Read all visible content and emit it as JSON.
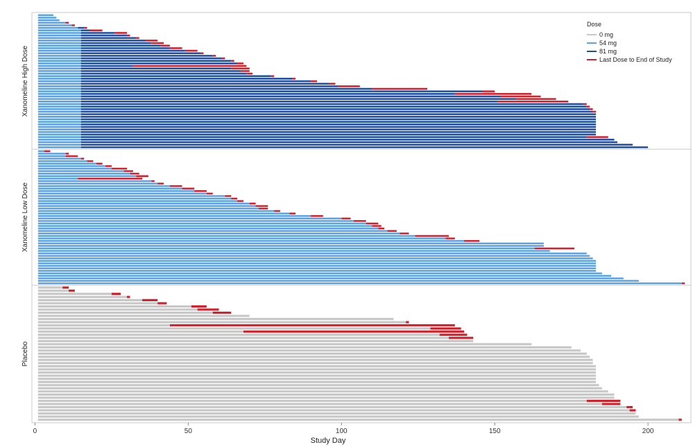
{
  "chart_data": {
    "type": "swimmer",
    "xlabel": "Study Day",
    "xlim": [
      -1,
      214
    ],
    "x_ticks": [
      0,
      50,
      100,
      150,
      200
    ],
    "legend": {
      "title": "Dose",
      "position": "top-right",
      "entries": [
        {
          "label": "0 mg",
          "color": "#c8c8c8"
        },
        {
          "label": "54 mg",
          "color": "#5aa2e6"
        },
        {
          "label": "81 mg",
          "color": "#1f4fa3"
        },
        {
          "label": "Last Dose to End of Study",
          "color": "#d4202a"
        }
      ]
    },
    "panels": [
      {
        "label": "Xanomeline High Dose",
        "subjects": [
          {
            "start": 1,
            "end": 6,
            "dose54_end": 6,
            "red_to": 6
          },
          {
            "start": 1,
            "end": 7,
            "dose54_end": 7,
            "red_to": 7
          },
          {
            "start": 1,
            "end": 8,
            "dose54_end": 8,
            "red_to": 8
          },
          {
            "start": 1,
            "end": 10,
            "dose54_end": 10,
            "red_to": 11
          },
          {
            "start": 1,
            "end": 12,
            "dose54_end": 12,
            "red_to": 13
          },
          {
            "start": 1,
            "end": 16,
            "dose54_end": 14,
            "red_to": 17
          },
          {
            "start": 1,
            "end": 18,
            "dose54_end": 15,
            "red_to": 22
          },
          {
            "start": 1,
            "end": 26,
            "dose54_end": 15,
            "red_to": 30
          },
          {
            "start": 1,
            "end": 30,
            "dose54_end": 15,
            "red_to": 31
          },
          {
            "start": 1,
            "end": 33,
            "dose54_end": 15,
            "red_to": 34
          },
          {
            "start": 1,
            "end": 36,
            "dose54_end": 15,
            "red_to": 40
          },
          {
            "start": 1,
            "end": 38,
            "dose54_end": 15,
            "red_to": 42
          },
          {
            "start": 1,
            "end": 41,
            "dose54_end": 15,
            "red_to": 44
          },
          {
            "start": 1,
            "end": 44,
            "dose54_end": 15,
            "red_to": 48
          },
          {
            "start": 1,
            "end": 49,
            "dose54_end": 15,
            "red_to": 53
          },
          {
            "start": 1,
            "end": 54,
            "dose54_end": 15,
            "red_to": 55
          },
          {
            "start": 1,
            "end": 58,
            "dose54_end": 15,
            "red_to": 59
          },
          {
            "start": 1,
            "end": 61,
            "dose54_end": 15,
            "red_to": 62
          },
          {
            "start": 1,
            "end": 64,
            "dose54_end": 15,
            "red_to": 65
          },
          {
            "start": 1,
            "end": 66,
            "dose54_end": 15,
            "red_to": 68
          },
          {
            "start": 1,
            "end": 32,
            "dose54_end": 15,
            "red_to": 69
          },
          {
            "start": 1,
            "end": 64,
            "dose54_end": 15,
            "red_to": 70
          },
          {
            "start": 1,
            "end": 67,
            "dose54_end": 15,
            "red_to": 70
          },
          {
            "start": 1,
            "end": 69,
            "dose54_end": 15,
            "red_to": 71
          },
          {
            "start": 1,
            "end": 77,
            "dose54_end": 15,
            "red_to": 78
          },
          {
            "start": 1,
            "end": 84,
            "dose54_end": 15,
            "red_to": 85
          },
          {
            "start": 1,
            "end": 90,
            "dose54_end": 15,
            "red_to": 92
          },
          {
            "start": 1,
            "end": 96,
            "dose54_end": 15,
            "red_to": 98
          },
          {
            "start": 1,
            "end": 99,
            "dose54_end": 15,
            "red_to": 106
          },
          {
            "start": 1,
            "end": 110,
            "dose54_end": 15,
            "red_to": 128
          },
          {
            "start": 1,
            "end": 146,
            "dose54_end": 15,
            "red_to": 150
          },
          {
            "start": 1,
            "end": 137,
            "dose54_end": 15,
            "red_to": 162
          },
          {
            "start": 1,
            "end": 152,
            "dose54_end": 15,
            "red_to": 165
          },
          {
            "start": 1,
            "end": 157,
            "dose54_end": 15,
            "red_to": 170
          },
          {
            "start": 1,
            "end": 151,
            "dose54_end": 15,
            "red_to": 174
          },
          {
            "start": 1,
            "end": 179,
            "dose54_end": 15,
            "red_to": 180
          },
          {
            "start": 1,
            "end": 180,
            "dose54_end": 15,
            "red_to": 181
          },
          {
            "start": 1,
            "end": 181,
            "dose54_end": 15,
            "red_to": 182
          },
          {
            "start": 1,
            "end": 182,
            "dose54_end": 15,
            "red_to": 183
          },
          {
            "start": 1,
            "end": 183,
            "dose54_end": 15
          },
          {
            "start": 1,
            "end": 183,
            "dose54_end": 15
          },
          {
            "start": 1,
            "end": 183,
            "dose54_end": 15
          },
          {
            "start": 1,
            "end": 183,
            "dose54_end": 15
          },
          {
            "start": 1,
            "end": 183,
            "dose54_end": 15
          },
          {
            "start": 1,
            "end": 183,
            "dose54_end": 15
          },
          {
            "start": 1,
            "end": 183,
            "dose54_end": 15
          },
          {
            "start": 1,
            "end": 183,
            "dose54_end": 15
          },
          {
            "start": 1,
            "end": 183,
            "dose54_end": 15
          },
          {
            "start": 1,
            "end": 180,
            "dose54_end": 15,
            "red_to": 187
          },
          {
            "start": 1,
            "end": 189,
            "dose54_end": 15
          },
          {
            "start": 1,
            "end": 190,
            "dose54_end": 15
          },
          {
            "start": 1,
            "end": 195,
            "dose54_end": 15
          },
          {
            "start": 1,
            "end": 200,
            "dose54_end": 15
          }
        ]
      },
      {
        "label": "Xanomeline Low Dose",
        "subjects": [
          {
            "start": 1,
            "end": 3,
            "red_to": 5
          },
          {
            "start": 1,
            "end": 10,
            "red_to": 11
          },
          {
            "start": 1,
            "end": 10,
            "red_to": 14
          },
          {
            "start": 1,
            "end": 15,
            "red_to": 16
          },
          {
            "start": 1,
            "end": 17,
            "red_to": 19
          },
          {
            "start": 1,
            "end": 20,
            "red_to": 22
          },
          {
            "start": 1,
            "end": 23,
            "red_to": 25
          },
          {
            "start": 1,
            "end": 25,
            "red_to": 30
          },
          {
            "start": 1,
            "end": 29,
            "red_to": 32
          },
          {
            "start": 1,
            "end": 31,
            "red_to": 34
          },
          {
            "start": 1,
            "end": 33,
            "red_to": 37
          },
          {
            "start": 1,
            "end": 14,
            "red_to": 35
          },
          {
            "start": 1,
            "end": 38,
            "red_to": 39
          },
          {
            "start": 1,
            "end": 40,
            "red_to": 42
          },
          {
            "start": 1,
            "end": 44,
            "red_to": 48
          },
          {
            "start": 1,
            "end": 48,
            "red_to": 52
          },
          {
            "start": 1,
            "end": 52,
            "red_to": 56
          },
          {
            "start": 1,
            "end": 56,
            "red_to": 58
          },
          {
            "start": 1,
            "end": 62,
            "red_to": 64
          },
          {
            "start": 1,
            "end": 64,
            "red_to": 66
          },
          {
            "start": 1,
            "end": 66,
            "red_to": 68
          },
          {
            "start": 1,
            "end": 70,
            "red_to": 72
          },
          {
            "start": 1,
            "end": 72,
            "red_to": 76
          },
          {
            "start": 1,
            "end": 73,
            "red_to": 76
          },
          {
            "start": 1,
            "end": 78,
            "red_to": 80
          },
          {
            "start": 1,
            "end": 83,
            "red_to": 85
          },
          {
            "start": 1,
            "end": 90,
            "red_to": 94
          },
          {
            "start": 1,
            "end": 100,
            "red_to": 103
          },
          {
            "start": 1,
            "end": 104,
            "red_to": 108
          },
          {
            "start": 1,
            "end": 108,
            "red_to": 112
          },
          {
            "start": 1,
            "end": 110,
            "red_to": 113
          },
          {
            "start": 1,
            "end": 112,
            "red_to": 114
          },
          {
            "start": 1,
            "end": 115,
            "red_to": 118
          },
          {
            "start": 1,
            "end": 119,
            "red_to": 122
          },
          {
            "start": 1,
            "end": 124,
            "red_to": 135
          },
          {
            "start": 1,
            "end": 134,
            "red_to": 137
          },
          {
            "start": 1,
            "end": 140,
            "red_to": 145
          },
          {
            "start": 1,
            "end": 166
          },
          {
            "start": 1,
            "end": 166
          },
          {
            "start": 1,
            "end": 163,
            "red_to": 176
          },
          {
            "start": 1,
            "end": 168
          },
          {
            "start": 1,
            "end": 180
          },
          {
            "start": 1,
            "end": 181
          },
          {
            "start": 1,
            "end": 182
          },
          {
            "start": 1,
            "end": 183
          },
          {
            "start": 1,
            "end": 183
          },
          {
            "start": 1,
            "end": 183
          },
          {
            "start": 1,
            "end": 183
          },
          {
            "start": 1,
            "end": 183
          },
          {
            "start": 1,
            "end": 185
          },
          {
            "start": 1,
            "end": 188
          },
          {
            "start": 1,
            "end": 192
          },
          {
            "start": 1,
            "end": 197
          },
          {
            "start": 1,
            "end": 211,
            "red_to": 212
          }
        ]
      },
      {
        "label": "Placebo",
        "subjects": [
          {
            "start": 1,
            "end": 9,
            "red_to": 11
          },
          {
            "start": 1,
            "end": 11,
            "red_to": 13
          },
          {
            "start": 1,
            "end": 25,
            "red_to": 28
          },
          {
            "start": 1,
            "end": 30,
            "red_to": 31
          },
          {
            "start": 1,
            "end": 35,
            "red_to": 40
          },
          {
            "start": 1,
            "end": 40,
            "red_to": 43
          },
          {
            "start": 1,
            "end": 51,
            "red_to": 56
          },
          {
            "start": 1,
            "end": 53,
            "red_to": 60
          },
          {
            "start": 1,
            "end": 58,
            "red_to": 64
          },
          {
            "start": 1,
            "end": 70
          },
          {
            "start": 1,
            "end": 117
          },
          {
            "start": 1,
            "end": 121,
            "red_to": 122
          },
          {
            "start": 1,
            "end": 44,
            "red_to": 137
          },
          {
            "start": 1,
            "end": 129,
            "red_to": 139
          },
          {
            "start": 1,
            "end": 68,
            "red_to": 140
          },
          {
            "start": 1,
            "end": 132,
            "red_to": 141
          },
          {
            "start": 1,
            "end": 135,
            "red_to": 143
          },
          {
            "start": 1,
            "end": 143
          },
          {
            "start": 1,
            "end": 162
          },
          {
            "start": 1,
            "end": 175
          },
          {
            "start": 1,
            "end": 178
          },
          {
            "start": 1,
            "end": 180
          },
          {
            "start": 1,
            "end": 181
          },
          {
            "start": 1,
            "end": 182
          },
          {
            "start": 1,
            "end": 182
          },
          {
            "start": 1,
            "end": 183
          },
          {
            "start": 1,
            "end": 183
          },
          {
            "start": 1,
            "end": 183
          },
          {
            "start": 1,
            "end": 183
          },
          {
            "start": 1,
            "end": 183
          },
          {
            "start": 1,
            "end": 183
          },
          {
            "start": 1,
            "end": 184
          },
          {
            "start": 1,
            "end": 185
          },
          {
            "start": 1,
            "end": 187
          },
          {
            "start": 1,
            "end": 189
          },
          {
            "start": 1,
            "end": 189
          },
          {
            "start": 1,
            "end": 180,
            "red_to": 191
          },
          {
            "start": 1,
            "end": 185,
            "red_to": 191
          },
          {
            "start": 1,
            "end": 193,
            "red_to": 195
          },
          {
            "start": 1,
            "end": 194,
            "red_to": 196
          },
          {
            "start": 1,
            "end": 196
          },
          {
            "start": 1,
            "end": 197
          },
          {
            "start": 1,
            "end": 210,
            "red_to": 211
          }
        ]
      }
    ]
  }
}
